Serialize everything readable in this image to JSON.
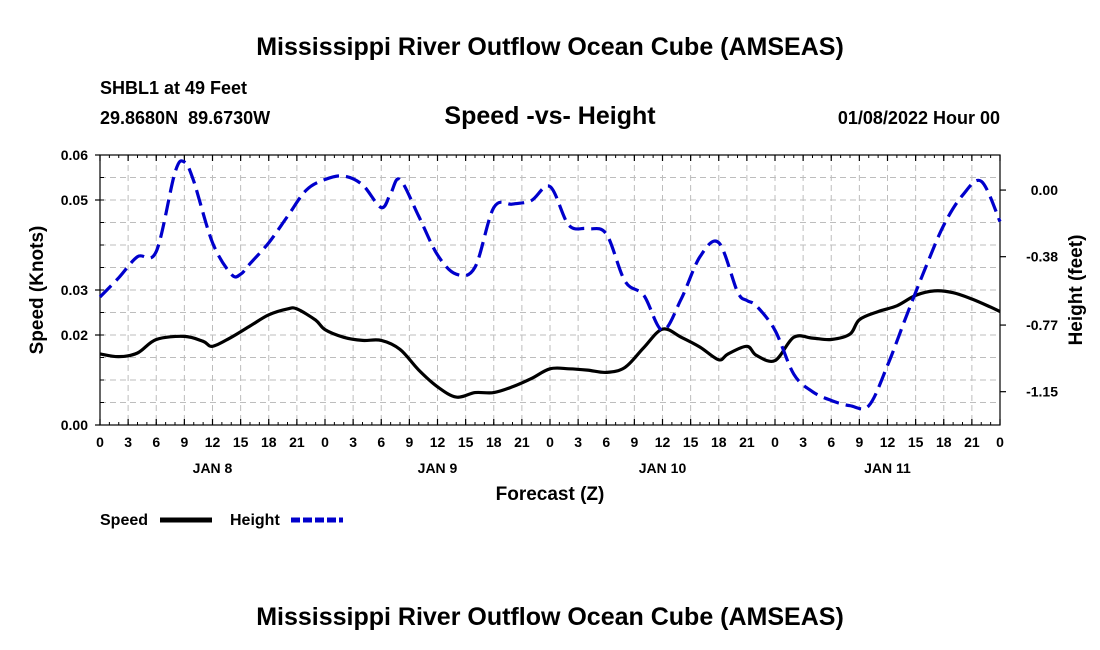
{
  "chart_data": {
    "type": "line",
    "title": "Mississippi River Outflow Ocean Cube (AMSEAS)",
    "subtitle": "Speed -vs- Height",
    "station": "SHBL1 at 49 Feet",
    "location": "29.8680N  89.6730W",
    "datetime": "01/08/2022 Hour 00",
    "xlabel": "Forecast (Z)",
    "ylabel_left": "Speed (Knots)",
    "ylabel_right": "Height (feet)",
    "x_hours_range": [
      0,
      96
    ],
    "x_tick_labels": [
      "0",
      "3",
      "6",
      "9",
      "12",
      "15",
      "18",
      "21",
      "0",
      "3",
      "6",
      "9",
      "12",
      "15",
      "18",
      "21",
      "0",
      "3",
      "6",
      "9",
      "12",
      "15",
      "18",
      "21",
      "0",
      "3",
      "6",
      "9",
      "12",
      "15",
      "18",
      "21",
      "0"
    ],
    "day_labels": [
      {
        "label": "JAN 8",
        "hour": 12
      },
      {
        "label": "JAN 9",
        "hour": 36
      },
      {
        "label": "JAN 10",
        "hour": 60
      },
      {
        "label": "JAN 11",
        "hour": 84
      }
    ],
    "y_left": {
      "ylim": [
        0,
        0.06
      ],
      "ticks": [
        0,
        0.02,
        0.03,
        0.05,
        0.06
      ],
      "tick_labels": [
        "0.00",
        "0.02",
        "0.03",
        "0.05",
        "0.06"
      ]
    },
    "y_right": {
      "ylim": [
        -1.34,
        0.2
      ],
      "ticks": [
        0.0,
        -0.38,
        -0.77,
        -1.15
      ],
      "tick_labels": [
        "0.00",
        "-0.38",
        "-0.77",
        "-1.15"
      ]
    },
    "series": [
      {
        "name": "Speed",
        "axis": "left",
        "color": "#000000",
        "dash": "solid",
        "x": [
          0,
          2,
          4,
          6,
          9,
          11,
          12,
          14,
          16,
          18,
          20,
          21,
          23,
          24,
          26,
          28,
          30,
          32,
          34,
          36,
          38,
          40,
          42,
          44,
          46,
          48,
          50,
          52,
          54,
          56,
          58,
          60,
          62,
          64,
          66,
          67,
          69,
          70,
          72,
          74,
          76,
          78,
          80,
          81,
          83,
          85,
          87,
          89,
          91,
          93,
          95,
          96
        ],
        "y": [
          0.0158,
          0.0152,
          0.016,
          0.019,
          0.0197,
          0.0186,
          0.0175,
          0.0195,
          0.022,
          0.0245,
          0.0258,
          0.0258,
          0.0233,
          0.0212,
          0.0195,
          0.0188,
          0.0188,
          0.0168,
          0.0122,
          0.0085,
          0.0062,
          0.0072,
          0.0072,
          0.0085,
          0.0103,
          0.0125,
          0.0125,
          0.0122,
          0.0117,
          0.0128,
          0.0172,
          0.0213,
          0.0195,
          0.0173,
          0.0145,
          0.0158,
          0.0175,
          0.0155,
          0.0143,
          0.0195,
          0.0193,
          0.019,
          0.0202,
          0.0234,
          0.0252,
          0.0265,
          0.0288,
          0.0298,
          0.0294,
          0.028,
          0.0262,
          0.0252
        ]
      },
      {
        "name": "Height",
        "axis": "right",
        "color": "#0000cc",
        "dash": "dashed",
        "x": [
          0,
          2,
          4,
          6,
          8,
          9,
          10,
          12,
          14,
          15,
          16,
          18,
          20,
          22,
          24,
          26,
          28,
          30,
          31,
          32,
          34,
          36,
          38,
          40,
          42,
          44,
          46,
          48,
          50,
          52,
          54,
          56,
          58,
          60,
          62,
          64,
          66,
          68,
          69,
          70,
          72,
          74,
          76,
          78,
          80,
          82,
          84,
          86,
          88,
          90,
          92,
          94,
          96
        ],
        "y": [
          -0.61,
          -0.5,
          -0.38,
          -0.35,
          0.1,
          0.16,
          0.05,
          -0.3,
          -0.48,
          -0.48,
          -0.42,
          -0.3,
          -0.15,
          0.0,
          0.06,
          0.08,
          0.03,
          -0.1,
          -0.02,
          0.06,
          -0.15,
          -0.37,
          -0.48,
          -0.44,
          -0.1,
          -0.08,
          -0.06,
          0.02,
          -0.2,
          -0.22,
          -0.25,
          -0.52,
          -0.6,
          -0.8,
          -0.62,
          -0.38,
          -0.3,
          -0.58,
          -0.63,
          -0.66,
          -0.8,
          -1.05,
          -1.15,
          -1.2,
          -1.23,
          -1.23,
          -1.0,
          -0.72,
          -0.45,
          -0.2,
          -0.03,
          0.05,
          -0.18
        ]
      }
    ],
    "legend": [
      {
        "label": "Speed",
        "color": "#000000"
      },
      {
        "label": "Height",
        "color": "#0000cc"
      }
    ],
    "footer_title": "Mississippi River Outflow Ocean Cube (AMSEAS)"
  }
}
